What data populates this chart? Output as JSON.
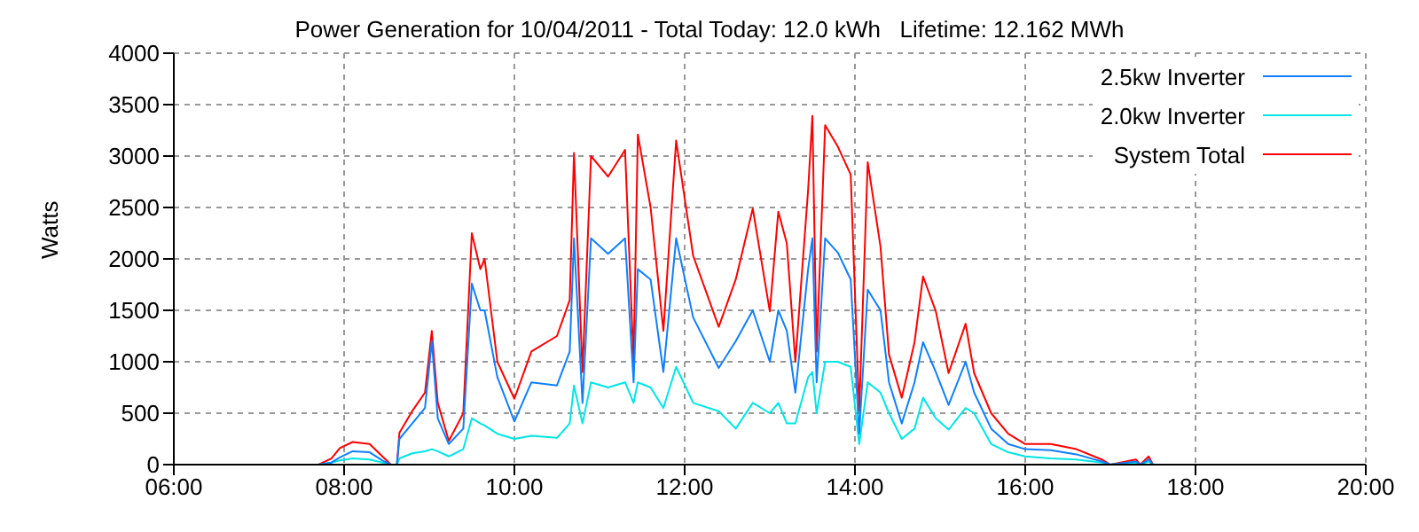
{
  "chart_data": {
    "type": "line",
    "title": "Power Generation for 10/04/2011 - Total Today: 12.0 kWh   Lifetime: 12.162 MWh",
    "ylabel": "Watts",
    "x": [
      7.7,
      7.85,
      7.95,
      8.1,
      8.3,
      8.45,
      8.55,
      8.62,
      8.65,
      8.8,
      8.95,
      9.03,
      9.1,
      9.23,
      9.4,
      9.5,
      9.6,
      9.65,
      9.8,
      10.0,
      10.2,
      10.5,
      10.65,
      10.7,
      10.8,
      10.9,
      11.1,
      11.3,
      11.4,
      11.45,
      11.6,
      11.75,
      11.9,
      12.1,
      12.4,
      12.6,
      12.8,
      13.0,
      13.1,
      13.2,
      13.3,
      13.45,
      13.5,
      13.55,
      13.65,
      13.8,
      13.95,
      14.05,
      14.15,
      14.3,
      14.4,
      14.55,
      14.7,
      14.8,
      14.95,
      15.1,
      15.3,
      15.4,
      15.6,
      15.8,
      16.0,
      16.3,
      16.6,
      16.9,
      17.0,
      17.3,
      17.35,
      17.45,
      17.5
    ],
    "series": [
      {
        "name": "2.5kw Inverter",
        "color": "#0f7fff",
        "values": [
          0,
          20,
          70,
          130,
          120,
          40,
          0,
          0,
          250,
          400,
          550,
          1200,
          450,
          200,
          350,
          1760,
          1500,
          1500,
          850,
          420,
          800,
          770,
          1100,
          2200,
          600,
          2200,
          2050,
          2200,
          800,
          1900,
          1800,
          900,
          2200,
          1430,
          940,
          1200,
          1500,
          1000,
          1500,
          1300,
          700,
          1900,
          2200,
          800,
          2200,
          2060,
          1800,
          300,
          1700,
          1500,
          800,
          400,
          800,
          1190,
          900,
          580,
          1000,
          700,
          350,
          200,
          150,
          140,
          100,
          30,
          0,
          30,
          0,
          50,
          0
        ]
      },
      {
        "name": "2.0kw Inverter",
        "color": "#00e5e5",
        "values": [
          0,
          20,
          40,
          60,
          50,
          20,
          0,
          0,
          60,
          110,
          130,
          150,
          130,
          80,
          150,
          450,
          400,
          380,
          300,
          250,
          280,
          260,
          400,
          770,
          400,
          800,
          750,
          800,
          600,
          800,
          750,
          550,
          950,
          600,
          520,
          350,
          600,
          500,
          600,
          400,
          400,
          850,
          900,
          500,
          1000,
          1000,
          950,
          200,
          800,
          700,
          500,
          250,
          350,
          650,
          450,
          340,
          550,
          500,
          200,
          120,
          80,
          60,
          50,
          20,
          0,
          20,
          0,
          30,
          0
        ]
      },
      {
        "name": "System Total",
        "color": "#ff0000",
        "values": [
          0,
          60,
          160,
          220,
          200,
          80,
          0,
          0,
          310,
          520,
          700,
          1300,
          600,
          230,
          500,
          2250,
          1900,
          2000,
          1000,
          640,
          1100,
          1250,
          1600,
          3030,
          900,
          3000,
          2800,
          3060,
          1000,
          3210,
          2500,
          1300,
          3150,
          2030,
          1340,
          1800,
          2490,
          1490,
          2460,
          2150,
          1000,
          2670,
          3390,
          1100,
          3300,
          3090,
          2820,
          520,
          2940,
          2120,
          1070,
          650,
          1190,
          1830,
          1490,
          890,
          1370,
          890,
          500,
          300,
          200,
          200,
          150,
          50,
          0,
          50,
          0,
          80,
          0
        ]
      }
    ],
    "xlim": [
      6,
      20
    ],
    "xticks": [
      {
        "value": 6,
        "label": "06:00"
      },
      {
        "value": 8,
        "label": "08:00"
      },
      {
        "value": 10,
        "label": "10:00"
      },
      {
        "value": 12,
        "label": "12:00"
      },
      {
        "value": 14,
        "label": "14:00"
      },
      {
        "value": 16,
        "label": "16:00"
      },
      {
        "value": 18,
        "label": "18:00"
      },
      {
        "value": 20,
        "label": "20:00"
      }
    ],
    "ylim": [
      0,
      4000
    ],
    "yticks": [
      0,
      500,
      1000,
      1500,
      2000,
      2500,
      3000,
      3500,
      4000
    ],
    "grid": true,
    "legend": "top right",
    "marker": "none",
    "line_style": "solid"
  }
}
